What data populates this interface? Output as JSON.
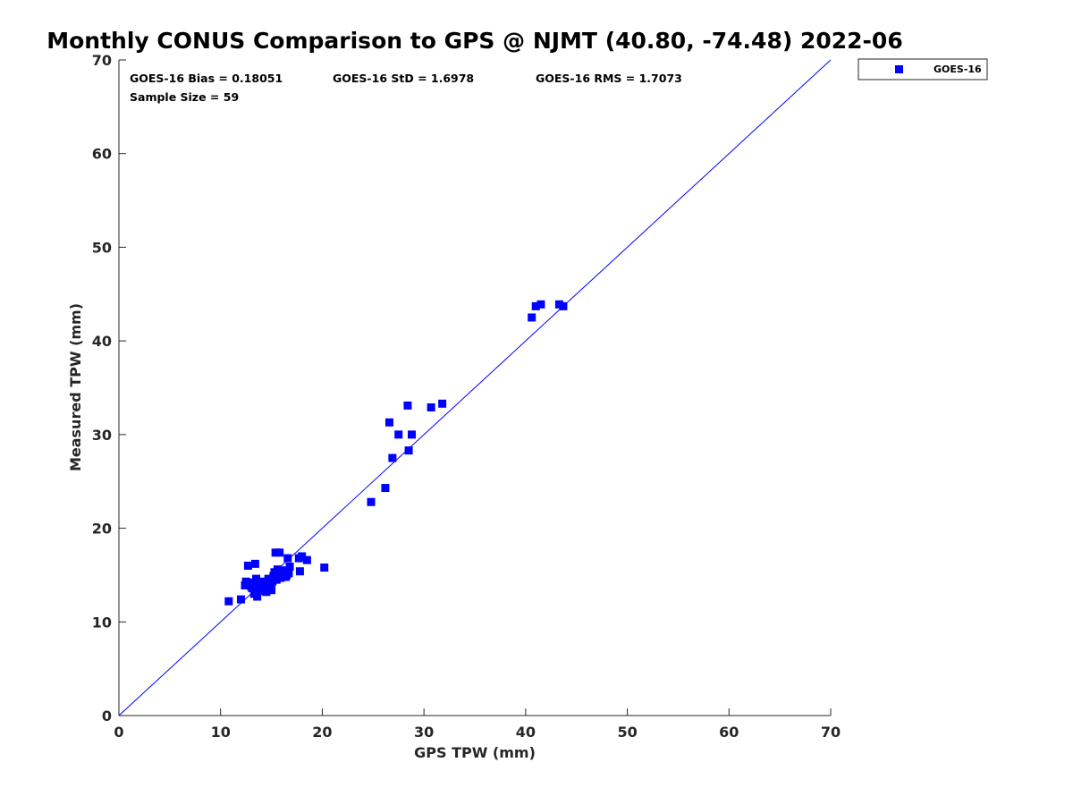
{
  "chart_data": {
    "type": "scatter",
    "title": "Monthly CONUS Comparison to GPS @ NJMT (40.80, -74.48) 2022-06",
    "xlabel": "GPS TPW (mm)",
    "ylabel": "Measured TPW (mm)",
    "xlim": [
      0,
      70
    ],
    "ylim": [
      0,
      70
    ],
    "xticks": [
      0,
      10,
      20,
      30,
      40,
      50,
      60,
      70
    ],
    "yticks": [
      0,
      10,
      20,
      30,
      40,
      50,
      60,
      70
    ],
    "grid": false,
    "legend_position": "top-right outside",
    "reference_line": {
      "x": [
        0,
        70
      ],
      "y": [
        0,
        70
      ],
      "color": "#0000ff"
    },
    "stats": {
      "bias": "GOES-16 Bias = 0.18051",
      "std": "GOES-16 StD = 1.6978",
      "rms": "GOES-16 RMS = 1.7073",
      "sample_size": "Sample Size = 59"
    },
    "series": [
      {
        "name": "GOES-16",
        "color": "#0000ff",
        "marker": "square",
        "points": [
          [
            10.8,
            12.2
          ],
          [
            12.0,
            12.4
          ],
          [
            12.4,
            13.9
          ],
          [
            12.5,
            14.3
          ],
          [
            12.7,
            16.0
          ],
          [
            13.0,
            13.8
          ],
          [
            13.2,
            14.1
          ],
          [
            13.3,
            13.0
          ],
          [
            13.4,
            16.2
          ],
          [
            13.5,
            14.6
          ],
          [
            13.6,
            12.7
          ],
          [
            13.7,
            13.5
          ],
          [
            13.8,
            14.0
          ],
          [
            14.0,
            13.3
          ],
          [
            14.1,
            14.3
          ],
          [
            14.5,
            13.2
          ],
          [
            14.7,
            14.6
          ],
          [
            15.0,
            13.4
          ],
          [
            15.1,
            14.3
          ],
          [
            15.3,
            15.3
          ],
          [
            15.4,
            17.4
          ],
          [
            15.5,
            14.5
          ],
          [
            15.7,
            15.0
          ],
          [
            15.8,
            17.4
          ],
          [
            15.9,
            14.7
          ],
          [
            16.0,
            15.3
          ],
          [
            16.4,
            14.8
          ],
          [
            16.6,
            16.8
          ],
          [
            16.7,
            15.2
          ],
          [
            16.8,
            15.9
          ],
          [
            17.7,
            16.8
          ],
          [
            17.8,
            15.4
          ],
          [
            18.0,
            17.0
          ],
          [
            18.5,
            16.6
          ],
          [
            20.2,
            15.8
          ],
          [
            24.8,
            22.8
          ],
          [
            26.2,
            24.3
          ],
          [
            26.6,
            31.3
          ],
          [
            26.9,
            27.5
          ],
          [
            27.5,
            30.0
          ],
          [
            28.4,
            33.1
          ],
          [
            28.5,
            28.3
          ],
          [
            28.8,
            30.0
          ],
          [
            30.7,
            32.9
          ],
          [
            31.8,
            33.3
          ],
          [
            40.6,
            42.5
          ],
          [
            41.0,
            43.7
          ],
          [
            41.5,
            43.9
          ],
          [
            43.3,
            43.9
          ],
          [
            43.7,
            43.7
          ],
          [
            14.2,
            13.7
          ],
          [
            15.2,
            14.9
          ],
          [
            16.2,
            15.5
          ],
          [
            13.1,
            13.6
          ],
          [
            12.8,
            14.2
          ],
          [
            14.9,
            14.1
          ],
          [
            16.5,
            15.0
          ],
          [
            13.9,
            13.9
          ],
          [
            15.6,
            15.6
          ]
        ]
      }
    ]
  }
}
